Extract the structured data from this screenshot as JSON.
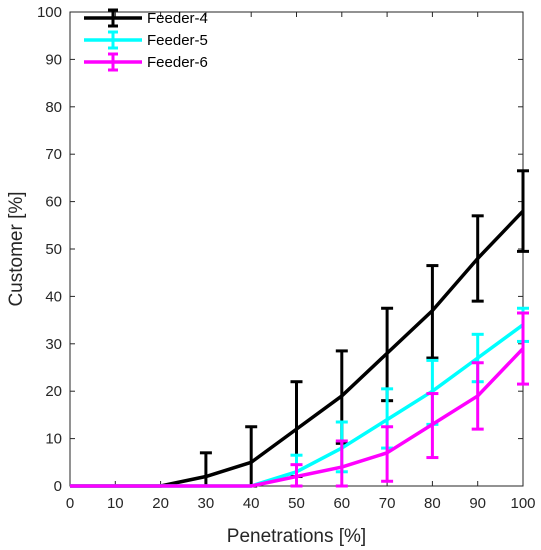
{
  "chart_data": {
    "type": "line",
    "title": "",
    "xlabel": "Penetrations [%]",
    "ylabel": "Customer [%]",
    "xlim": [
      0,
      100
    ],
    "ylim": [
      0,
      100
    ],
    "xticks": [
      0,
      10,
      20,
      30,
      40,
      50,
      60,
      70,
      80,
      90,
      100
    ],
    "yticks": [
      0,
      10,
      20,
      30,
      40,
      50,
      60,
      70,
      80,
      90,
      100
    ],
    "x": [
      0,
      10,
      20,
      30,
      40,
      50,
      60,
      70,
      80,
      90,
      100
    ],
    "grid": false,
    "legend_position": "top-left",
    "series": [
      {
        "name": "Feeder-4",
        "color": "#000000",
        "values": [
          0,
          0,
          0,
          2,
          5,
          12,
          19,
          28,
          37,
          48,
          58
        ],
        "err_low": [
          0,
          0,
          0,
          0,
          0,
          2,
          9,
          18,
          27,
          39,
          49.5
        ],
        "err_high": [
          0,
          0,
          0,
          7,
          12.5,
          22,
          28.5,
          37.5,
          46.5,
          57,
          66.5
        ]
      },
      {
        "name": "Feeder-5",
        "color": "#00FFFF",
        "values": [
          0,
          0,
          0,
          0,
          0,
          3,
          8,
          14,
          20,
          27,
          34
        ],
        "err_low": [
          0,
          0,
          0,
          0,
          0,
          0,
          3,
          8,
          13,
          22,
          30.5
        ],
        "err_high": [
          0,
          0,
          0,
          0,
          0,
          6.5,
          13.5,
          20.5,
          26.5,
          32,
          37.5
        ]
      },
      {
        "name": "Feeder-6",
        "color": "#FF00FF",
        "values": [
          0,
          0,
          0,
          0,
          0,
          2,
          4,
          7,
          13,
          19,
          29
        ],
        "err_low": [
          0,
          0,
          0,
          0,
          0,
          0,
          0,
          1,
          6,
          12,
          21.5
        ],
        "err_high": [
          0,
          0,
          0,
          0,
          0,
          4.5,
          9.5,
          12.5,
          19.5,
          26,
          36.5
        ]
      }
    ]
  }
}
